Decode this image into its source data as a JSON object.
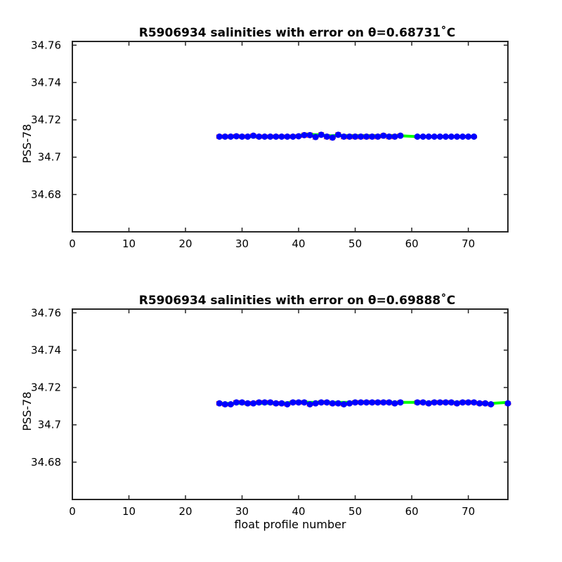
{
  "figure": {
    "background": "#ffffff",
    "xlabel": "float profile number"
  },
  "colors": {
    "point": "#0000ff",
    "line": "#00ff00",
    "error_box": "#ff0000"
  },
  "chart_data": [
    {
      "type": "scatter",
      "title": "R5906934 salinities with error on θ=0.68731˚C",
      "xlabel": "",
      "ylabel": "PSS-78",
      "xlim": [
        0,
        77
      ],
      "ylim": [
        34.66,
        34.762
      ],
      "xticks": [
        "0",
        "10",
        "20",
        "30",
        "40",
        "50",
        "60",
        "70"
      ],
      "yticks": [
        "34.68",
        "34.7",
        "34.72",
        "34.74",
        "34.76"
      ],
      "series": [
        {
          "x": [
            26,
            27,
            28,
            29,
            30,
            31,
            32,
            33,
            34,
            35,
            36,
            37,
            38,
            39,
            40,
            41,
            42,
            43,
            44,
            45,
            46,
            47,
            48,
            49,
            50,
            51,
            52,
            53,
            54,
            55,
            56,
            57,
            58,
            61,
            62,
            63,
            64,
            65,
            66,
            67,
            68,
            69,
            70,
            71
          ],
          "y": [
            34.711,
            34.711,
            34.711,
            34.7112,
            34.711,
            34.711,
            34.7115,
            34.711,
            34.711,
            34.711,
            34.711,
            34.711,
            34.711,
            34.711,
            34.7112,
            34.7118,
            34.7118,
            34.7108,
            34.712,
            34.711,
            34.7105,
            34.712,
            34.711,
            34.711,
            34.711,
            34.711,
            34.711,
            34.711,
            34.711,
            34.7115,
            34.711,
            34.711,
            34.7115,
            34.711,
            34.711,
            34.711,
            34.711,
            34.711,
            34.711,
            34.711,
            34.711,
            34.711,
            34.711,
            34.711
          ],
          "err": [
            0.001,
            0.001,
            0.001,
            0.001,
            0.001,
            0.001,
            0.001,
            0.001,
            0.001,
            0.001,
            0.001,
            0.001,
            0.001,
            0.001,
            0.001,
            0.0012,
            0.0012,
            0.0012,
            0.0012,
            0.0012,
            0.0012,
            0.0012,
            0.0012,
            0.0012,
            0.0012,
            0.0012,
            0.0012,
            0.0012,
            0.0012,
            0.0012,
            0.0012,
            0.0012,
            0.001,
            0.0008,
            0.0008,
            0.0008,
            0.0008,
            0.0008,
            0.0008,
            0.0008,
            0.0008,
            0.0008,
            0.0008,
            0.0008
          ],
          "trend": [
            34.711,
            34.711,
            34.711,
            34.711,
            34.711,
            34.711,
            34.711,
            34.711,
            34.711,
            34.711,
            34.711,
            34.711,
            34.711,
            34.711,
            34.7115,
            34.7122,
            34.7122,
            34.712,
            34.712,
            34.7115,
            34.7115,
            34.7118,
            34.7115,
            34.7115,
            34.7115,
            34.7115,
            34.7115,
            34.7115,
            34.7115,
            34.7115,
            34.7115,
            34.7115,
            34.7115,
            34.711,
            34.711,
            34.711,
            34.711,
            34.711,
            34.711,
            34.711,
            34.711,
            34.711,
            34.711,
            34.711
          ]
        }
      ]
    },
    {
      "type": "scatter",
      "title": "R5906934 salinities with error on θ=0.69888˚C",
      "xlabel": "float profile number",
      "ylabel": "PSS-78",
      "xlim": [
        0,
        77
      ],
      "ylim": [
        34.66,
        34.762
      ],
      "xticks": [
        "0",
        "10",
        "20",
        "30",
        "40",
        "50",
        "60",
        "70"
      ],
      "yticks": [
        "34.68",
        "34.7",
        "34.72",
        "34.74",
        "34.76"
      ],
      "series": [
        {
          "x": [
            26,
            27,
            28,
            29,
            30,
            31,
            32,
            33,
            34,
            35,
            36,
            37,
            38,
            39,
            40,
            41,
            42,
            43,
            44,
            45,
            46,
            47,
            48,
            49,
            50,
            51,
            52,
            53,
            54,
            55,
            56,
            57,
            58,
            61,
            62,
            63,
            64,
            65,
            66,
            67,
            68,
            69,
            70,
            71,
            72,
            73,
            74,
            77
          ],
          "y": [
            34.7115,
            34.711,
            34.711,
            34.712,
            34.712,
            34.7115,
            34.7115,
            34.712,
            34.712,
            34.712,
            34.7115,
            34.7115,
            34.711,
            34.712,
            34.712,
            34.712,
            34.711,
            34.7115,
            34.712,
            34.712,
            34.7115,
            34.7115,
            34.711,
            34.7115,
            34.712,
            34.712,
            34.712,
            34.712,
            34.712,
            34.712,
            34.712,
            34.7115,
            34.712,
            34.712,
            34.712,
            34.7115,
            34.712,
            34.712,
            34.712,
            34.712,
            34.7115,
            34.712,
            34.712,
            34.712,
            34.7115,
            34.7115,
            34.711,
            34.7115
          ],
          "err": [
            0.001,
            0.001,
            0.001,
            0.001,
            0.001,
            0.001,
            0.001,
            0.001,
            0.001,
            0.001,
            0.001,
            0.001,
            0.001,
            0.001,
            0.001,
            0.001,
            0.001,
            0.001,
            0.001,
            0.001,
            0.001,
            0.001,
            0.001,
            0.001,
            0.001,
            0.001,
            0.001,
            0.001,
            0.001,
            0.001,
            0.001,
            0.001,
            0.001,
            0.001,
            0.001,
            0.001,
            0.001,
            0.001,
            0.001,
            0.001,
            0.001,
            0.001,
            0.001,
            0.001,
            0.001,
            0.001,
            0.001,
            0.001
          ],
          "trend": [
            34.7115,
            34.7115,
            34.7115,
            34.7115,
            34.7115,
            34.7115,
            34.7115,
            34.7115,
            34.7115,
            34.7115,
            34.7115,
            34.7115,
            34.7118,
            34.7122,
            34.7122,
            34.7122,
            34.712,
            34.712,
            34.7122,
            34.712,
            34.712,
            34.712,
            34.712,
            34.712,
            34.712,
            34.712,
            34.712,
            34.712,
            34.712,
            34.712,
            34.712,
            34.712,
            34.712,
            34.712,
            34.712,
            34.712,
            34.712,
            34.712,
            34.712,
            34.712,
            34.712,
            34.712,
            34.712,
            34.712,
            34.7115,
            34.7115,
            34.7115,
            34.712
          ]
        }
      ]
    }
  ]
}
